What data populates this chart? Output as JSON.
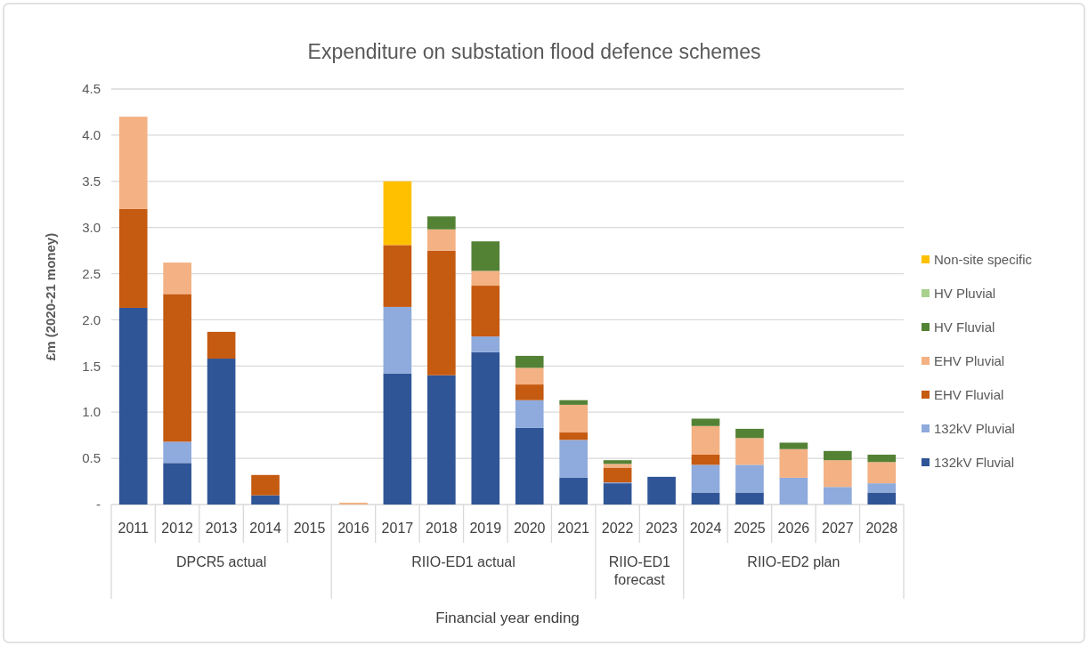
{
  "chart_data": {
    "type": "bar",
    "stacked": true,
    "title": "Expenditure on substation flood defence schemes",
    "xlabel": "Financial year ending",
    "ylabel": "£m (2020-21 money)",
    "categories": [
      "2011",
      "2012",
      "2013",
      "2014",
      "2015",
      "2016",
      "2017",
      "2018",
      "2019",
      "2020",
      "2021",
      "2022",
      "2023",
      "2024",
      "2025",
      "2026",
      "2027",
      "2028"
    ],
    "series": [
      {
        "name": "132kV Fluvial",
        "color": "#2f5597",
        "values": [
          2.13,
          0.45,
          1.58,
          0.1,
          0,
          0,
          1.42,
          1.4,
          1.65,
          0.83,
          0.29,
          0.23,
          0.3,
          0.13,
          0.13,
          0,
          0,
          0.13
        ]
      },
      {
        "name": "132kV Pluvial",
        "color": "#8faadc",
        "values": [
          0,
          0.23,
          0,
          0,
          0,
          0,
          0.72,
          0,
          0.17,
          0.3,
          0.41,
          0.01,
          0,
          0.3,
          0.3,
          0.29,
          0.19,
          0.1
        ]
      },
      {
        "name": "EHV Fluvial",
        "color": "#c55a11",
        "values": [
          1.07,
          1.6,
          0.29,
          0.22,
          0,
          0,
          0.67,
          1.35,
          0.55,
          0.17,
          0.08,
          0.16,
          0,
          0.11,
          0,
          0,
          0,
          0
        ]
      },
      {
        "name": "EHV Pluvial",
        "color": "#f4b183",
        "values": [
          1.0,
          0.34,
          0,
          0,
          0,
          0.02,
          0,
          0.23,
          0.16,
          0.18,
          0.3,
          0.04,
          0,
          0.31,
          0.29,
          0.31,
          0.29,
          0.23
        ]
      },
      {
        "name": "HV Fluvial",
        "color": "#548235",
        "values": [
          0,
          0,
          0,
          0,
          0,
          0,
          0,
          0.14,
          0.32,
          0.13,
          0.05,
          0.04,
          0,
          0.08,
          0.1,
          0.07,
          0.1,
          0.08
        ]
      },
      {
        "name": "HV Pluvial",
        "color": "#a9d18e",
        "values": [
          0,
          0,
          0,
          0,
          0,
          0,
          0,
          0,
          0,
          0,
          0,
          0,
          0,
          0,
          0,
          0,
          0,
          0
        ]
      },
      {
        "name": "Non-site specific",
        "color": "#ffc000",
        "values": [
          0,
          0,
          0,
          0,
          0,
          0,
          0.69,
          0,
          0,
          0,
          0,
          0,
          0,
          0,
          0,
          0,
          0,
          0
        ]
      }
    ],
    "ylim": [
      0,
      4.5
    ],
    "yticks": [
      {
        "value": 0,
        "label": "-"
      },
      0.5,
      {
        "value": 1,
        "label": "1.0"
      },
      1.5,
      {
        "value": 2,
        "label": "2.0"
      },
      2.5,
      {
        "value": 3,
        "label": "3.0"
      },
      3.5,
      {
        "value": 4,
        "label": "4.0"
      },
      4.5
    ],
    "grid": "y",
    "legend": "right",
    "annotations": [
      "DPCR5 actual",
      "RIIO-ED1 actual",
      "RIIO-ED1 forecast",
      "RIIO-ED2 plan"
    ]
  }
}
